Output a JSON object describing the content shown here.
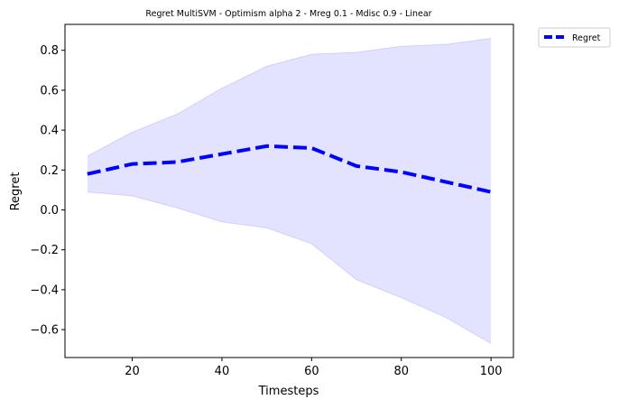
{
  "chart_data": {
    "type": "line",
    "title": "Regret MultiSVM - Optimism alpha 2 - Mreg 0.1 - Mdisc 0.9 - Linear",
    "xlabel": "Timesteps",
    "ylabel": "Regret",
    "xlim": [
      5,
      105
    ],
    "ylim": [
      -0.74,
      0.93
    ],
    "xticks": [
      20,
      40,
      60,
      80,
      100
    ],
    "yticks": [
      -0.6,
      -0.4,
      -0.2,
      0.0,
      0.2,
      0.4,
      0.6,
      0.8
    ],
    "ytick_labels": [
      "−0.6",
      "−0.4",
      "−0.2",
      "0.0",
      "0.2",
      "0.4",
      "0.6",
      "0.8"
    ],
    "grid": false,
    "legend_position": "outside top-right",
    "x": [
      10,
      20,
      30,
      40,
      50,
      60,
      70,
      80,
      90,
      100
    ],
    "series": [
      {
        "name": "Regret",
        "values": [
          0.18,
          0.23,
          0.24,
          0.28,
          0.32,
          0.31,
          0.22,
          0.19,
          0.14,
          0.09
        ],
        "lower": [
          0.09,
          0.07,
          0.01,
          -0.06,
          -0.09,
          -0.17,
          -0.35,
          -0.44,
          -0.54,
          -0.67
        ],
        "upper": [
          0.27,
          0.39,
          0.48,
          0.61,
          0.72,
          0.78,
          0.79,
          0.82,
          0.83,
          0.86
        ],
        "color": "#0000ff",
        "band_color": "#0000ff",
        "linestyle": "dashed"
      }
    ]
  }
}
